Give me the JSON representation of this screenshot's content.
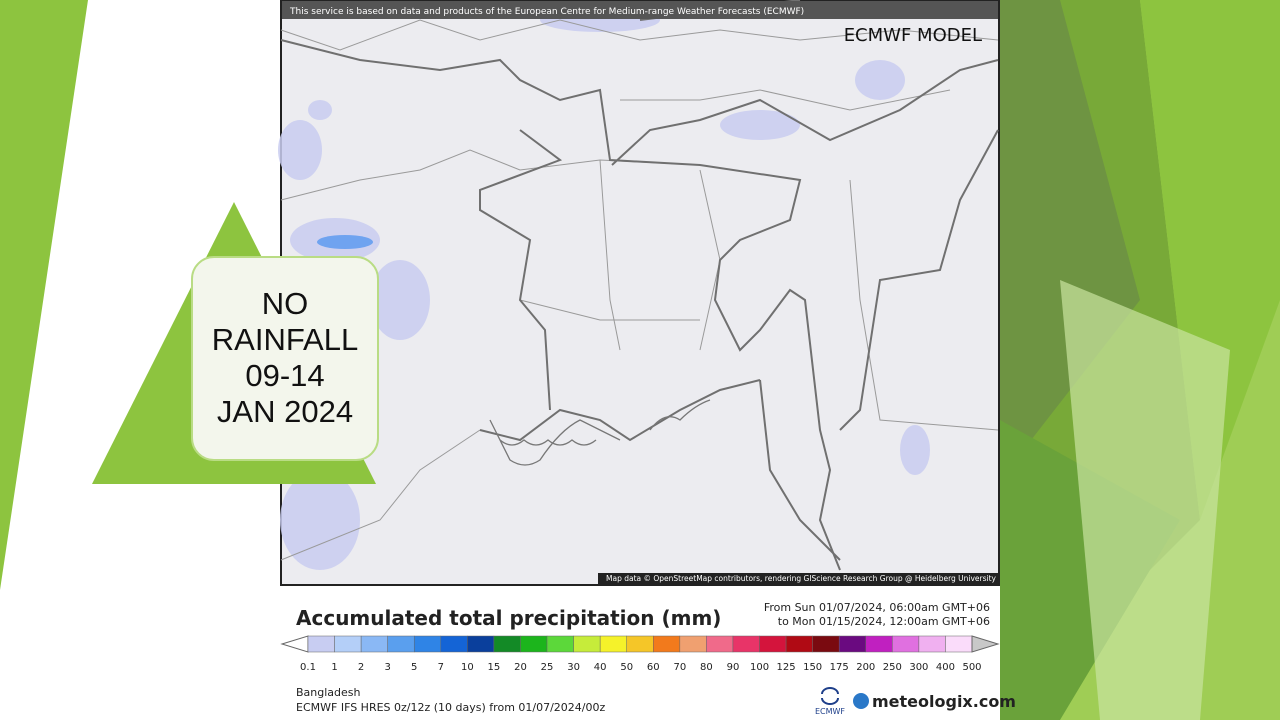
{
  "slide": {
    "callout_lines": [
      "NO",
      "RAINFALL",
      "09-14",
      "JAN 2024"
    ]
  },
  "map": {
    "notice": "This service is based on data and products of the European Centre for Medium-range Weather Forecasts (ECMWF)",
    "model_label": "ECMWF MODEL",
    "attribution": "Map data © OpenStreetMap contributors, rendering GIScience Research Group @ Heidelberg University"
  },
  "legend": {
    "title": "Accumulated total precipitation (mm)",
    "period": [
      "From Sun 01/07/2024, 06:00am GMT+06",
      "to Mon 01/15/2024, 12:00am GMT+06"
    ],
    "labels": [
      "0.1",
      "1",
      "2",
      "3",
      "5",
      "7",
      "10",
      "15",
      "20",
      "25",
      "30",
      "40",
      "50",
      "60",
      "70",
      "80",
      "90",
      "100",
      "125",
      "150",
      "175",
      "200",
      "250",
      "300",
      "400",
      "500"
    ],
    "colors": [
      "#c8cdf2",
      "#b4cff8",
      "#8ab8f5",
      "#5a9fee",
      "#2f84e6",
      "#1464d6",
      "#0a3f9c",
      "#138a26",
      "#1cb51c",
      "#5cd83a",
      "#c6ec3a",
      "#f5f22a",
      "#f5c628",
      "#f27a1c",
      "#f0a070",
      "#f06a8a",
      "#e83468",
      "#d4143c",
      "#b00a14",
      "#7a0a10",
      "#6a0a80",
      "#c020c0",
      "#e070e0",
      "#f0b0f0",
      "#fadcfa"
    ]
  },
  "footer": {
    "region": "Bangladesh",
    "run": "ECMWF IFS HRES 0z/12z (10 days) from  01/07/2024/00z",
    "ecmwf_logo": "ECMWF",
    "brand": "meteologix.com"
  }
}
